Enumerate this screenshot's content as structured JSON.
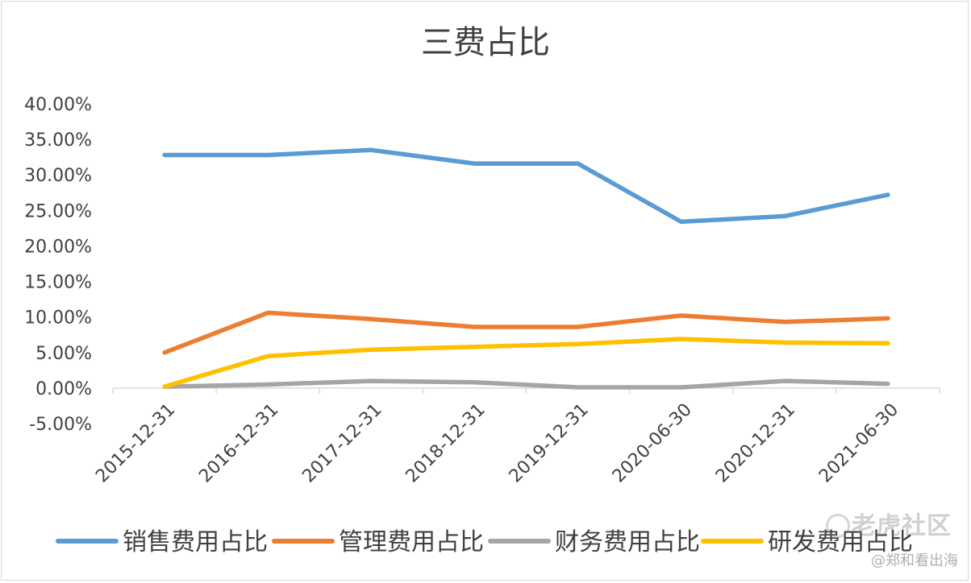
{
  "chart_data": {
    "type": "line",
    "title": "三费占比",
    "categories": [
      "2015-12-31",
      "2016-12-31",
      "2017-12-31",
      "2018-12-31",
      "2019-12-31",
      "2020-06-30",
      "2020-12-31",
      "2021-06-30"
    ],
    "ylim": [
      -0.05,
      0.4
    ],
    "yticks": [
      0.4,
      0.35,
      0.3,
      0.25,
      0.2,
      0.15,
      0.1,
      0.05,
      0.0,
      -0.05
    ],
    "ytick_labels": [
      "40.00%",
      "35.00%",
      "30.00%",
      "25.00%",
      "20.00%",
      "15.00%",
      "10.00%",
      "5.00%",
      "0.00%",
      "-5.00%"
    ],
    "grid": false,
    "legend_position": "bottom",
    "series": [
      {
        "name": "销售费用占比",
        "color": "#5B9BD5",
        "values": [
          0.328,
          0.328,
          0.335,
          0.316,
          0.316,
          0.234,
          0.242,
          0.272
        ]
      },
      {
        "name": "管理费用占比",
        "color": "#ED7D31",
        "values": [
          0.05,
          0.106,
          0.097,
          0.086,
          0.086,
          0.102,
          0.093,
          0.098
        ]
      },
      {
        "name": "财务费用占比",
        "color": "#A5A5A5",
        "values": [
          0.002,
          0.005,
          0.01,
          0.008,
          0.001,
          0.001,
          0.01,
          0.006
        ]
      },
      {
        "name": "研发费用占比",
        "color": "#FFC000",
        "values": [
          0.002,
          0.045,
          0.054,
          0.058,
          0.062,
          0.069,
          0.064,
          0.063
        ]
      }
    ]
  },
  "watermark": {
    "logo_text": "老虎社区",
    "user_text": "@郑和看出海"
  }
}
